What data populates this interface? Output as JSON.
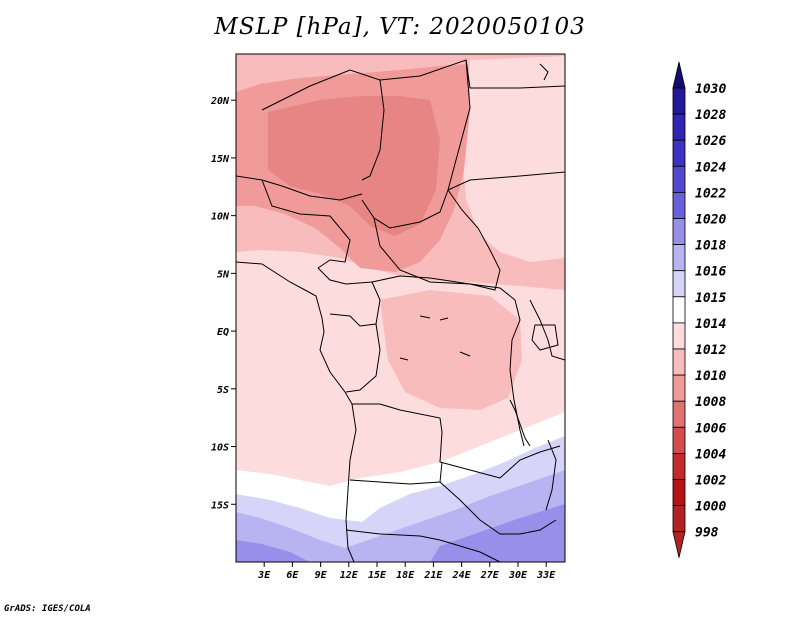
{
  "header": {
    "title": "MSLP [hPa], VT: 2020050103"
  },
  "footer": {
    "credit": "GrADS: IGES/COLA"
  },
  "map": {
    "field": "Mean sea level pressure",
    "units": "hPa",
    "lon_range": [
      0,
      35
    ],
    "lat_range": [
      -20,
      24
    ],
    "lat_ticks": [
      {
        "label": "20N",
        "lat": 20
      },
      {
        "label": "15N",
        "lat": 15
      },
      {
        "label": "10N",
        "lat": 10
      },
      {
        "label": "5N",
        "lat": 5
      },
      {
        "label": "EQ",
        "lat": 0
      },
      {
        "label": "5S",
        "lat": -5
      },
      {
        "label": "10S",
        "lat": -10
      },
      {
        "label": "15S",
        "lat": -15
      }
    ],
    "lon_ticks": [
      {
        "label": "3E",
        "lon": 3
      },
      {
        "label": "6E",
        "lon": 6
      },
      {
        "label": "9E",
        "lon": 9
      },
      {
        "label": "12E",
        "lon": 12
      },
      {
        "label": "15E",
        "lon": 15
      },
      {
        "label": "18E",
        "lon": 18
      },
      {
        "label": "21E",
        "lon": 21
      },
      {
        "label": "24E",
        "lon": 24
      },
      {
        "label": "27E",
        "lon": 27
      },
      {
        "label": "30E",
        "lon": 30
      },
      {
        "label": "33E",
        "lon": 33
      }
    ]
  },
  "colorbar": {
    "levels": [
      "1030",
      "1028",
      "1026",
      "1024",
      "1022",
      "1020",
      "1018",
      "1016",
      "1015",
      "1014",
      "1012",
      "1010",
      "1008",
      "1006",
      "1004",
      "1002",
      "1000",
      "998"
    ],
    "colors": [
      "#160c72",
      "#24189a",
      "#3024b4",
      "#3e32c4",
      "#5448d2",
      "#6a60dc",
      "#9690ea",
      "#b8b4f2",
      "#d6d4f8",
      "#ffffff",
      "#fcdcdc",
      "#f8bcbc",
      "#f09a9a",
      "#e07272",
      "#d44c4c",
      "#c42a2a",
      "#b41414",
      "#b22222"
    ]
  }
}
